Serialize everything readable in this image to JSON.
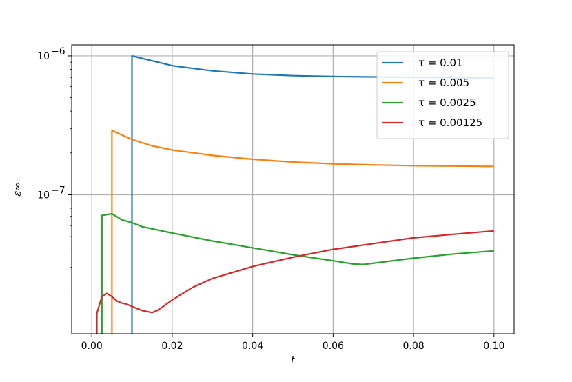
{
  "chart_data": {
    "type": "line",
    "title": "",
    "xlabel": "t",
    "ylabel": "ε∞",
    "xscale": "linear",
    "yscale": "log",
    "xlim": [
      -0.005,
      0.105
    ],
    "ylim": [
      1e-08,
      1.2e-06
    ],
    "grid": true,
    "legend": "top-right",
    "xticks": [
      {
        "value": 0.0,
        "label": "0.00"
      },
      {
        "value": 0.02,
        "label": "0.02"
      },
      {
        "value": 0.04,
        "label": "0.04"
      },
      {
        "value": 0.06,
        "label": "0.06"
      },
      {
        "value": 0.08,
        "label": "0.08"
      },
      {
        "value": 0.1,
        "label": "0.10"
      }
    ],
    "yticks": [
      {
        "value": 1e-07,
        "base": "10",
        "exp": "−7"
      },
      {
        "value": 1e-06,
        "base": "10",
        "exp": "−6"
      }
    ],
    "series": [
      {
        "name": "τ = 0.01",
        "color": "#1f77b4",
        "x": [
          0.01,
          0.01,
          0.02,
          0.03,
          0.04,
          0.05,
          0.06,
          0.07,
          0.08,
          0.09,
          0.1
        ],
        "y": [
          1e-08,
          1e-06,
          8.5e-07,
          7.8e-07,
          7.4e-07,
          7.2e-07,
          7.1e-07,
          7.05e-07,
          7e-07,
          6.95e-07,
          6.9e-07
        ]
      },
      {
        "name": "τ = 0.005",
        "color": "#ff7f0e",
        "x": [
          0.005,
          0.005,
          0.01,
          0.015,
          0.02,
          0.03,
          0.04,
          0.05,
          0.06,
          0.07,
          0.08,
          0.09,
          0.1
        ],
        "y": [
          1e-08,
          2.9e-07,
          2.5e-07,
          2.25e-07,
          2.1e-07,
          1.92e-07,
          1.8e-07,
          1.72e-07,
          1.67e-07,
          1.64e-07,
          1.62e-07,
          1.61e-07,
          1.6e-07
        ]
      },
      {
        "name": "τ = 0.0025",
        "color": "#2ca02c",
        "x": [
          0.0025,
          0.0025,
          0.005,
          0.0075,
          0.01,
          0.0125,
          0.02,
          0.03,
          0.04,
          0.05,
          0.06,
          0.065,
          0.0675,
          0.08,
          0.09,
          0.1
        ],
        "y": [
          1e-08,
          7.1e-08,
          7.3e-08,
          6.6e-08,
          6.3e-08,
          5.9e-08,
          5.3e-08,
          4.65e-08,
          4.15e-08,
          3.7e-08,
          3.35e-08,
          3.18e-08,
          3.15e-08,
          3.5e-08,
          3.75e-08,
          3.95e-08
        ]
      },
      {
        "name": "τ = 0.00125",
        "color": "#d62728",
        "x": [
          0.00125,
          0.00125,
          0.0025,
          0.00375,
          0.005,
          0.00625,
          0.0075,
          0.00875,
          0.01,
          0.0125,
          0.015,
          0.01625,
          0.0175,
          0.02,
          0.025,
          0.03,
          0.04,
          0.05,
          0.06,
          0.07,
          0.08,
          0.09,
          0.1
        ],
        "y": [
          1e-08,
          1.4e-08,
          1.85e-08,
          1.95e-08,
          1.85e-08,
          1.72e-08,
          1.66e-08,
          1.63e-08,
          1.57e-08,
          1.47e-08,
          1.42e-08,
          1.47e-08,
          1.55e-08,
          1.75e-08,
          2.15e-08,
          2.5e-08,
          3.05e-08,
          3.55e-08,
          4.05e-08,
          4.45e-08,
          4.9e-08,
          5.2e-08,
          5.5e-08
        ]
      }
    ]
  }
}
